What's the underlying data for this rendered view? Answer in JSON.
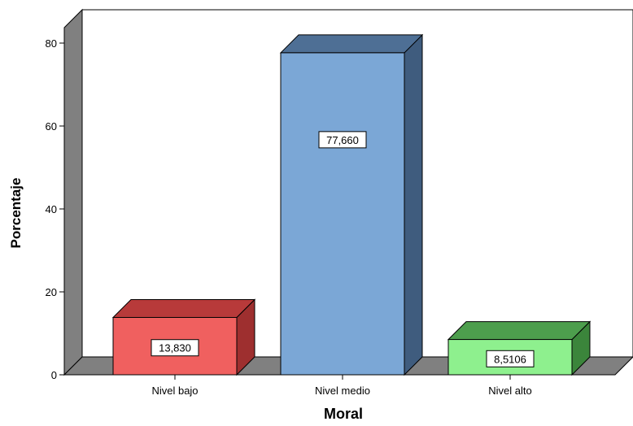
{
  "chart_data": {
    "type": "bar",
    "style": "3d",
    "categories": [
      "Nivel bajo",
      "Nivel medio",
      "Nivel alto"
    ],
    "values": [
      13.83,
      77.66,
      8.5106
    ],
    "value_labels": [
      "13,830",
      "77,660",
      "8,5106"
    ],
    "xlabel": "Moral",
    "ylabel": "Porcentaje",
    "ylim": [
      0,
      85
    ],
    "yticks": [
      0,
      20,
      40,
      60,
      80
    ],
    "ytick_labels": [
      "0",
      "20",
      "40",
      "60",
      "80"
    ],
    "grid": false,
    "legend": "none",
    "colors": {
      "bars": [
        {
          "front": "#f0605f",
          "top": "#b83a3a",
          "side": "#9e2f2f"
        },
        {
          "front": "#7ba7d6",
          "top": "#4e6f95",
          "side": "#3f5c7e"
        },
        {
          "front": "#8ef08e",
          "top": "#4d9e4d",
          "side": "#3b853b"
        }
      ],
      "wall": "#808080",
      "floor": "#808080"
    }
  }
}
